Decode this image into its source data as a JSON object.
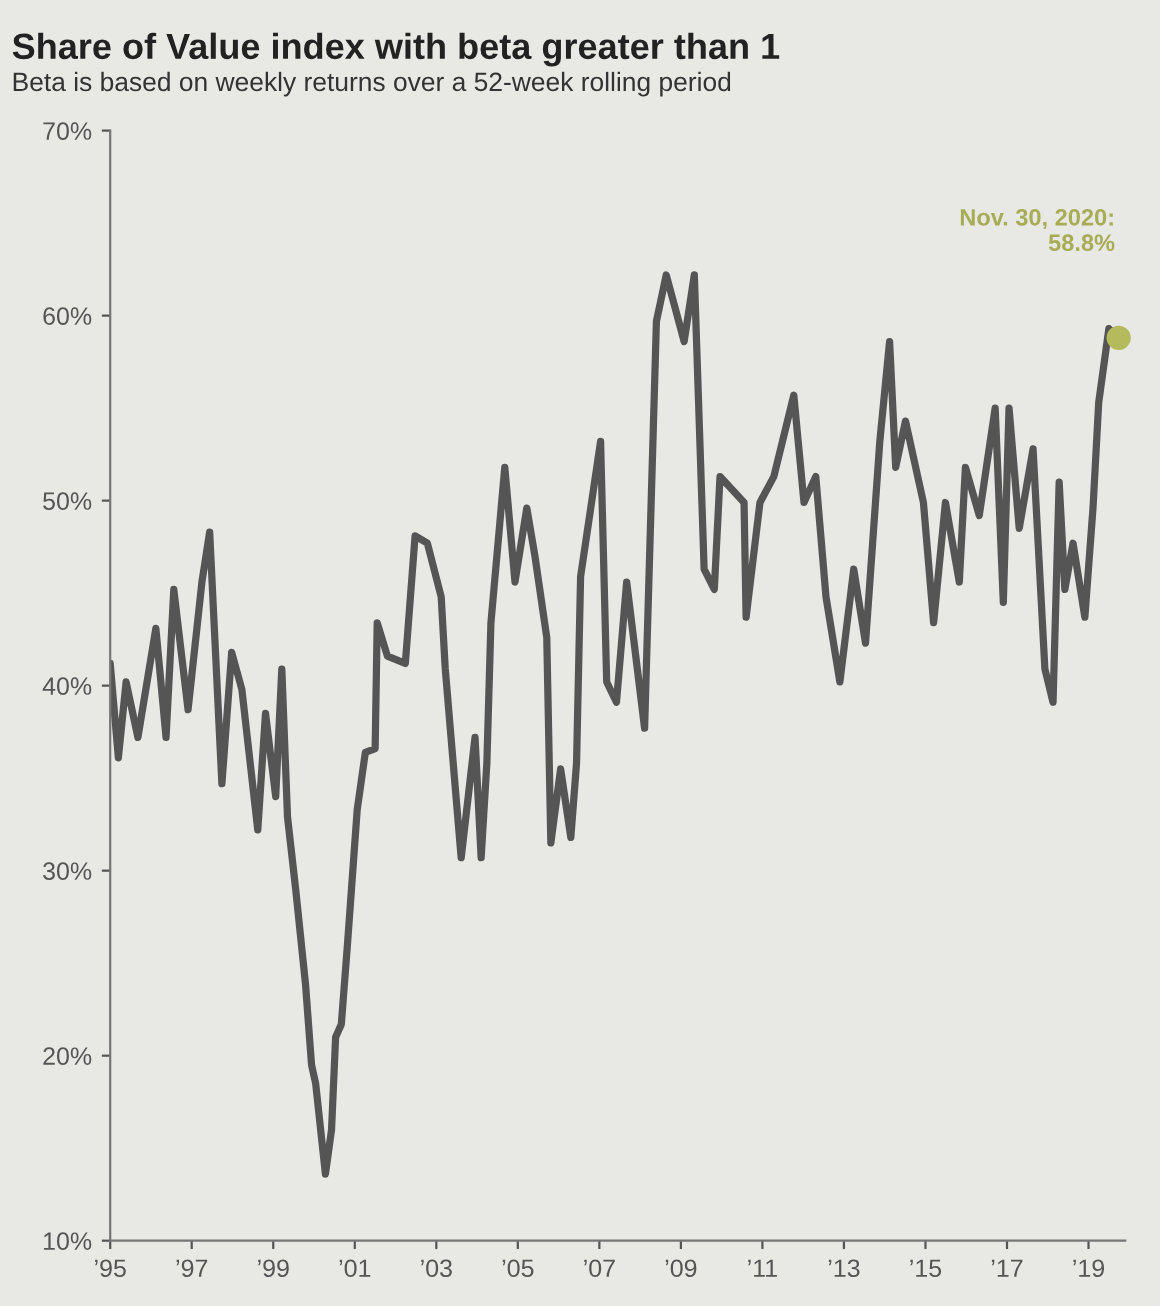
{
  "chart_data": {
    "type": "line",
    "title": "Share of Value index with beta greater than 1",
    "subtitle": "Beta is based on weekly returns over a 52-week rolling period",
    "series": [
      {
        "color": "#555555",
        "x": [
          1995.0,
          1995.2,
          1995.39,
          1995.68,
          1996.12,
          1996.37,
          1996.56,
          1996.91,
          1997.25,
          1997.44,
          1997.74,
          1997.98,
          1998.23,
          1998.62,
          1998.81,
          1999.06,
          1999.21,
          1999.35,
          1999.55,
          1999.79,
          1999.94,
          2000.04,
          2000.28,
          2000.43,
          2000.53,
          2000.67,
          2000.82,
          2001.06,
          2001.26,
          2001.5,
          2001.55,
          2001.8,
          2002.24,
          2002.48,
          2002.78,
          2003.12,
          2003.22,
          2003.61,
          2003.95,
          2004.1,
          2004.24,
          2004.34,
          2004.68,
          2004.93,
          2005.22,
          2005.42,
          2005.71,
          2005.81,
          2006.05,
          2006.3,
          2006.44,
          2006.54,
          2007.03,
          2007.18,
          2007.42,
          2007.67,
          2008.11,
          2008.4,
          2008.64,
          2009.08,
          2009.33,
          2009.57,
          2009.82,
          2009.96,
          2010.55,
          2010.6,
          2010.94,
          2011.28,
          2011.77,
          2012.02,
          2012.31,
          2012.56,
          2012.9,
          2013.24,
          2013.53,
          2013.88,
          2014.12,
          2014.27,
          2014.51,
          2014.95,
          2015.2,
          2015.49,
          2015.83,
          2015.98,
          2016.32,
          2016.71,
          2016.91,
          2017.05,
          2017.3,
          2017.64,
          2017.93,
          2018.13,
          2018.28,
          2018.42,
          2018.62,
          2018.91,
          2019.11,
          2019.25,
          2019.5,
          2019.74
        ],
        "values": [
          41.2,
          36.1,
          40.2,
          37.2,
          43.1,
          37.2,
          45.2,
          38.7,
          45.6,
          48.3,
          34.7,
          41.8,
          39.8,
          32.2,
          38.5,
          34.0,
          40.9,
          32.9,
          29.0,
          23.9,
          19.5,
          18.5,
          13.6,
          16.0,
          21.0,
          21.7,
          26.0,
          33.3,
          36.4,
          36.6,
          43.4,
          41.6,
          41.2,
          48.1,
          47.7,
          44.8,
          40.9,
          30.7,
          37.2,
          30.7,
          35.8,
          43.4,
          51.8,
          45.6,
          49.6,
          47.0,
          42.6,
          31.5,
          35.5,
          31.8,
          35.8,
          45.9,
          53.2,
          40.2,
          39.1,
          45.6,
          37.7,
          59.7,
          62.2,
          58.6,
          62.2,
          46.3,
          45.2,
          51.3,
          49.9,
          43.7,
          49.9,
          51.3,
          55.7,
          49.9,
          51.3,
          44.8,
          40.2,
          46.3,
          42.3,
          53.2,
          58.6,
          51.8,
          54.3,
          49.9,
          43.4,
          49.9,
          45.6,
          51.8,
          49.2,
          55.0,
          44.5,
          55.0,
          48.5,
          52.8,
          40.9,
          39.1,
          51.0,
          45.2,
          47.7,
          43.7,
          49.6,
          55.3,
          59.3,
          58.8
        ]
      },
      {
        "type": "scatter",
        "color": "#b4bb5c",
        "x": [
          2019.74
        ],
        "values": [
          58.8
        ]
      }
    ],
    "annotations": [
      "Nov. 30, 2020:\n58.8%"
    ],
    "xlim": [
      1995,
      2019.9
    ],
    "xticks": [
      {
        "value": 1995,
        "label": "’95"
      },
      {
        "value": 1997,
        "label": "’97"
      },
      {
        "value": 1999,
        "label": "’99"
      },
      {
        "value": 2001,
        "label": "’01"
      },
      {
        "value": 2003,
        "label": "’03"
      },
      {
        "value": 2005,
        "label": "’05"
      },
      {
        "value": 2007,
        "label": "’07"
      },
      {
        "value": 2009,
        "label": "’09"
      },
      {
        "value": 2011,
        "label": "’11"
      },
      {
        "value": 2013,
        "label": "’13"
      },
      {
        "value": 2015,
        "label": "’15"
      },
      {
        "value": 2017,
        "label": "’17"
      },
      {
        "value": 2019,
        "label": "’19"
      }
    ],
    "ylim": [
      10,
      70
    ],
    "yticks": [
      {
        "value": 10,
        "label": "10%"
      },
      {
        "value": 20,
        "label": "20%"
      },
      {
        "value": 30,
        "label": "30%"
      },
      {
        "value": 40,
        "label": "40%"
      },
      {
        "value": 50,
        "label": "50%"
      },
      {
        "value": 60,
        "label": "60%"
      },
      {
        "value": 70,
        "label": "70%"
      }
    ],
    "grid": false,
    "legend": false
  }
}
